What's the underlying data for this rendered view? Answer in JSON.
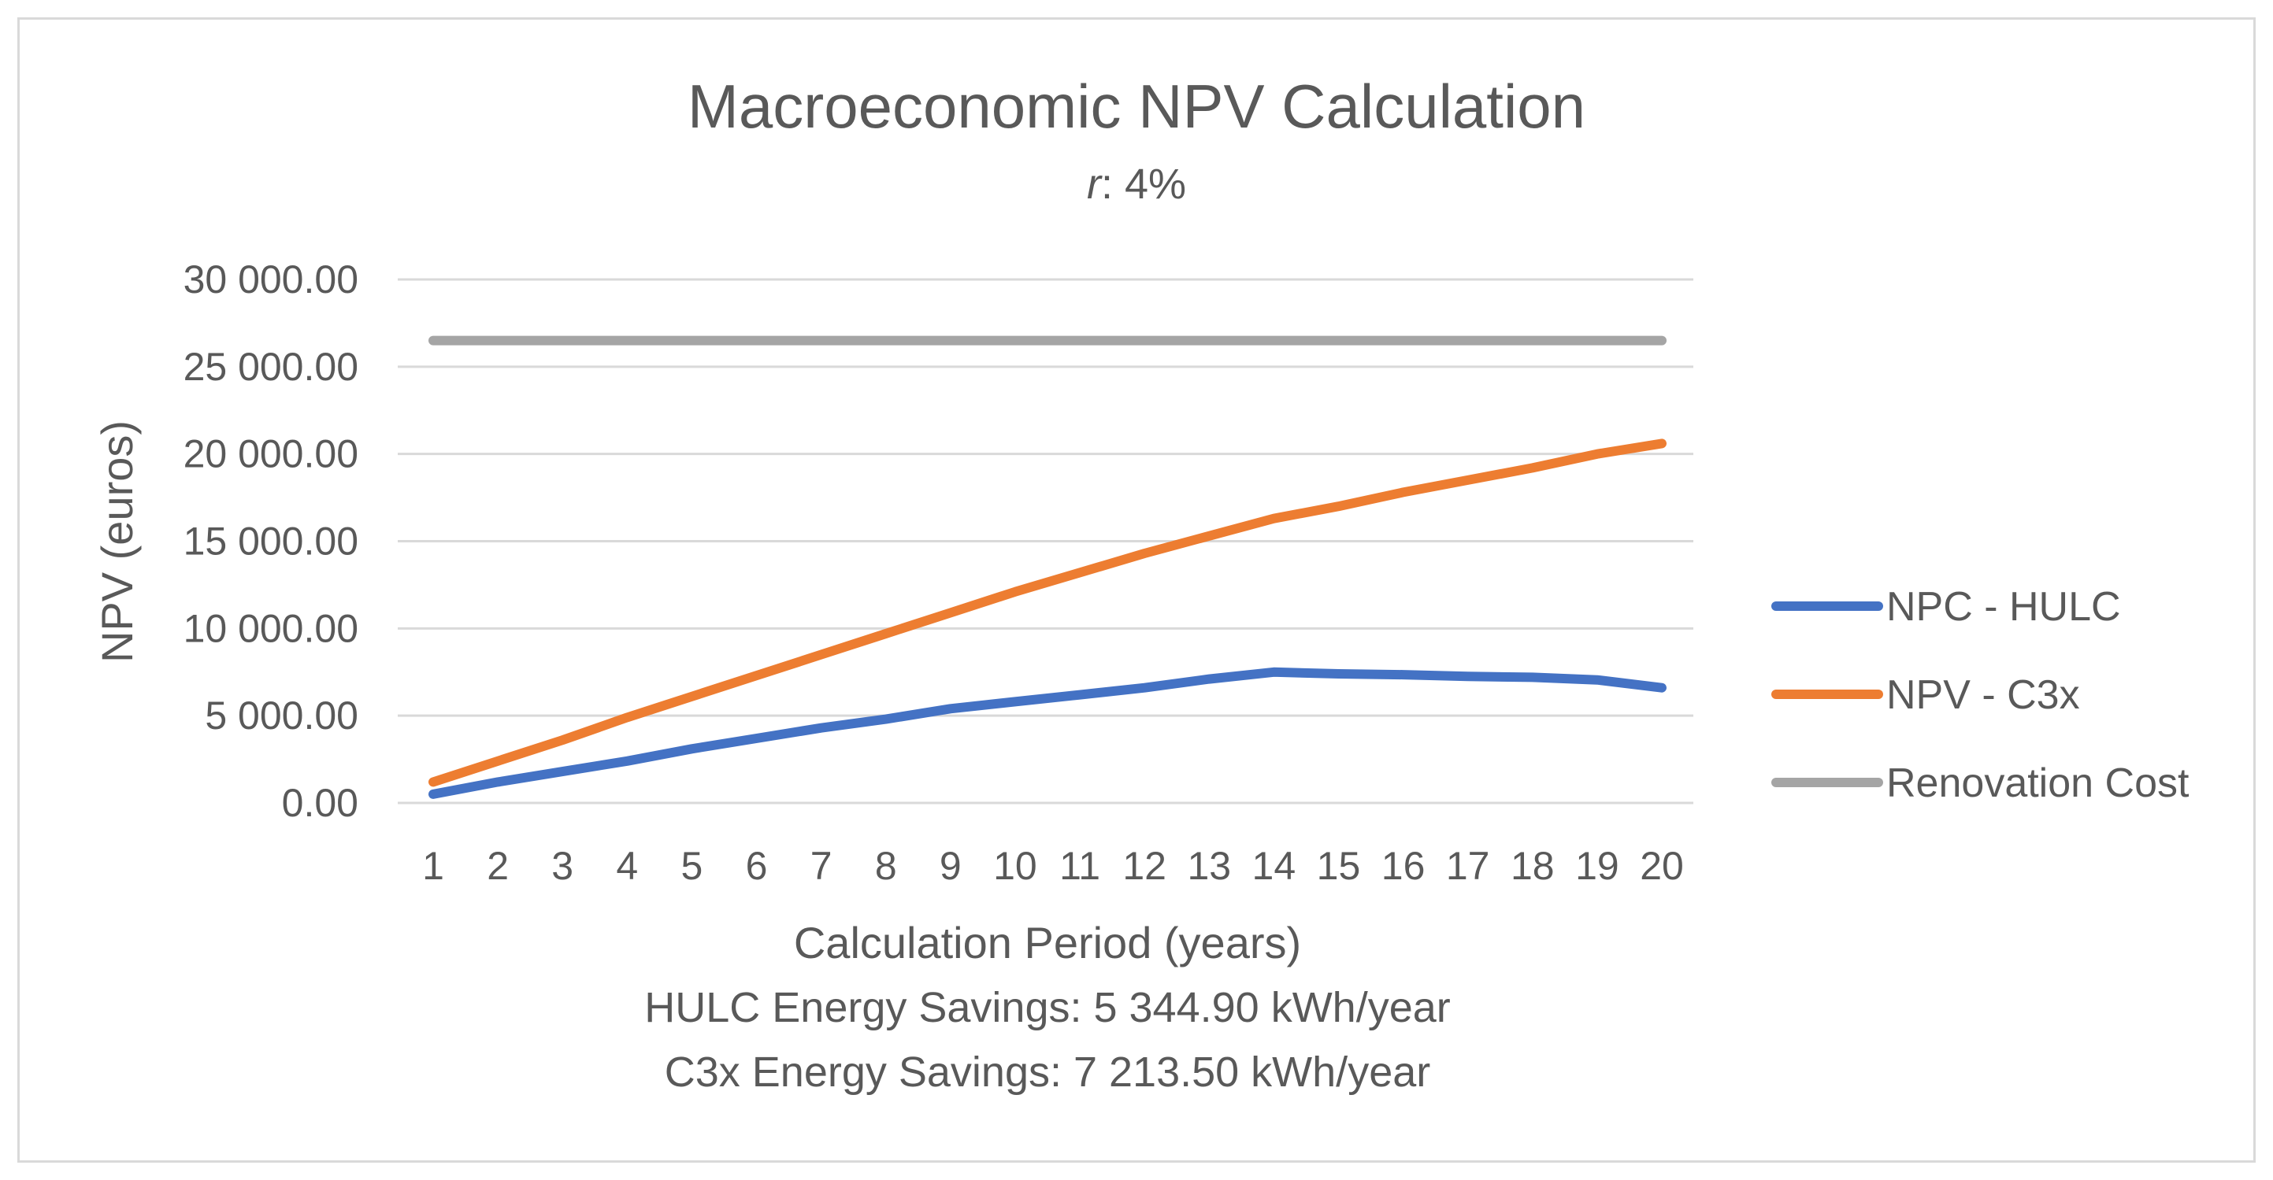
{
  "chart_data": {
    "type": "line",
    "title": "Macroeconomic NPV Calculation",
    "subtitle": {
      "italic_part": "r",
      "rest": ": 4%"
    },
    "xlabel": "Calculation Period (years)",
    "ylabel": "NPV (euros)",
    "notes": [
      "HULC Energy Savings: 5 344.90 kWh/year",
      "C3x Energy Savings: 7 213.50 kWh/year"
    ],
    "categories": [
      "1",
      "2",
      "3",
      "4",
      "5",
      "6",
      "7",
      "8",
      "9",
      "10",
      "11",
      "12",
      "13",
      "14",
      "15",
      "16",
      "17",
      "18",
      "19",
      "20"
    ],
    "ylim": [
      0,
      30000
    ],
    "yticks": [
      0,
      5000,
      10000,
      15000,
      20000,
      25000,
      30000
    ],
    "ytick_labels": [
      "0.00",
      "5 000.00",
      "10 000.00",
      "15 000.00",
      "20 000.00",
      "25 000.00",
      "30 000.00"
    ],
    "grid": true,
    "legend_position": "right",
    "series": [
      {
        "name": "NPC - HULC",
        "color": "#4472c4",
        "values": [
          500,
          1200,
          1800,
          2400,
          3100,
          3700,
          4300,
          4800,
          5400,
          5800,
          6200,
          6600,
          7100,
          7500,
          7400,
          7350,
          7250,
          7200,
          7050,
          6600
        ]
      },
      {
        "name": "NPV - C3x",
        "color": "#ed7d31",
        "values": [
          1200,
          2400,
          3600,
          4900,
          6100,
          7300,
          8500,
          9700,
          10900,
          12100,
          13200,
          14300,
          15300,
          16300,
          17000,
          17800,
          18500,
          19200,
          20000,
          20600
        ]
      },
      {
        "name": "Renovation Cost",
        "color": "#a5a5a5",
        "values": [
          26500,
          26500,
          26500,
          26500,
          26500,
          26500,
          26500,
          26500,
          26500,
          26500,
          26500,
          26500,
          26500,
          26500,
          26500,
          26500,
          26500,
          26500,
          26500,
          26500
        ]
      }
    ]
  }
}
